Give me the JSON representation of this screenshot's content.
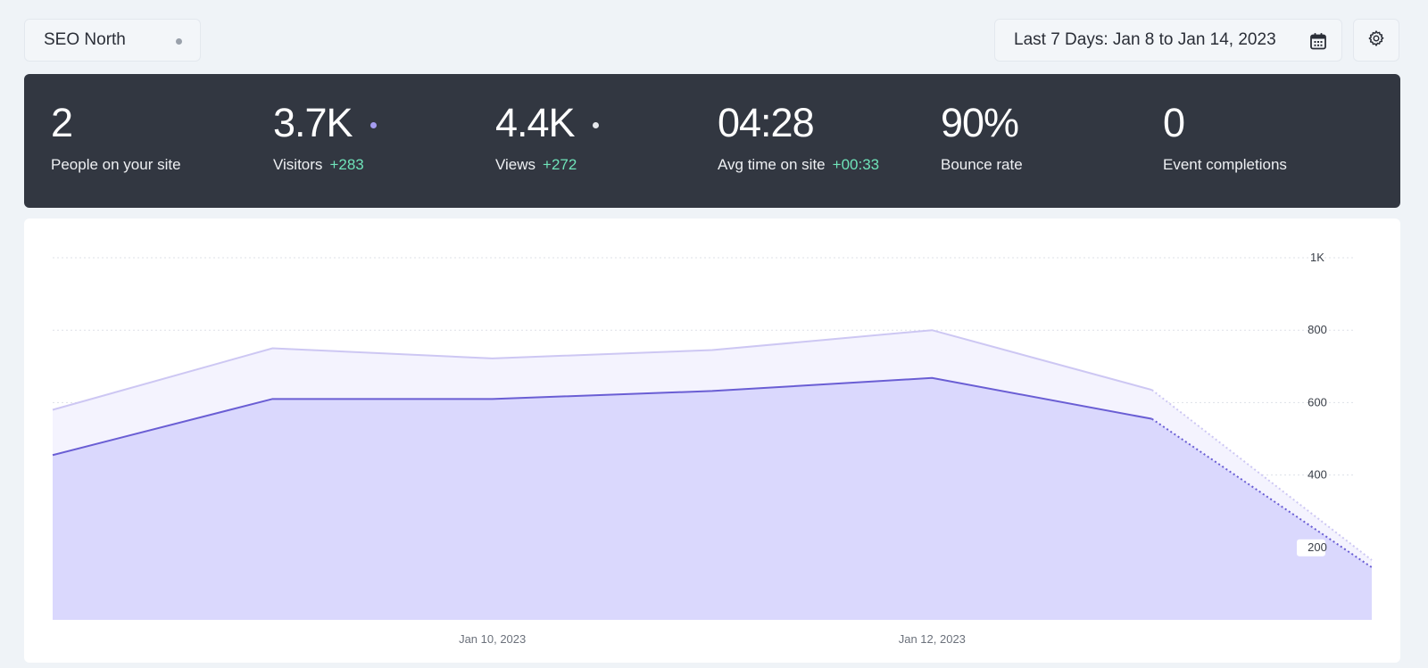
{
  "site_selector": {
    "label": "SEO North"
  },
  "date_range": {
    "label": "Last 7 Days: Jan 8 to Jan 14, 2023"
  },
  "icons": {
    "calendar": "calendar-icon",
    "settings": "gear-icon"
  },
  "stats": [
    {
      "value": "2",
      "label": "People on your site",
      "delta": ""
    },
    {
      "value": "3.7K",
      "label": "Visitors",
      "delta": "+283"
    },
    {
      "value": "4.4K",
      "label": "Views",
      "delta": "+272"
    },
    {
      "value": "04:28",
      "label": "Avg time on site",
      "delta": "+00:33"
    },
    {
      "value": "90%",
      "label": "Bounce rate",
      "delta": ""
    },
    {
      "value": "0",
      "label": "Event completions",
      "delta": ""
    }
  ],
  "colors": {
    "views_fill": "#f4f3fe",
    "views_line": "#cdc7f3",
    "visitors_fill": "#dad8fd",
    "visitors_line": "#6a5ed4",
    "positive_delta": "#6fe3b9",
    "panel": "#323741"
  },
  "chart_data": {
    "type": "area",
    "x": [
      "Jan 8, 2023",
      "Jan 9, 2023",
      "Jan 10, 2023",
      "Jan 11, 2023",
      "Jan 12, 2023",
      "Jan 13, 2023",
      "Jan 14, 2023"
    ],
    "x_tick_labels": [
      {
        "x": "Jan 10, 2023",
        "label": "Jan 10, 2023"
      },
      {
        "x": "Jan 12, 2023",
        "label": "Jan 12, 2023"
      }
    ],
    "y_ticks": [
      {
        "value": 200,
        "label": "200"
      },
      {
        "value": 400,
        "label": "400"
      },
      {
        "value": 600,
        "label": "600"
      },
      {
        "value": 800,
        "label": "800"
      },
      {
        "value": 1000,
        "label": "1K"
      }
    ],
    "ylim": [
      0,
      1000
    ],
    "series": [
      {
        "values": [
          580,
          750,
          722,
          745,
          800,
          635,
          165
        ],
        "incomplete_last": true
      },
      {
        "values": [
          455,
          610,
          610,
          632,
          668,
          555,
          145
        ],
        "incomplete_last": true
      }
    ],
    "grid": true
  }
}
